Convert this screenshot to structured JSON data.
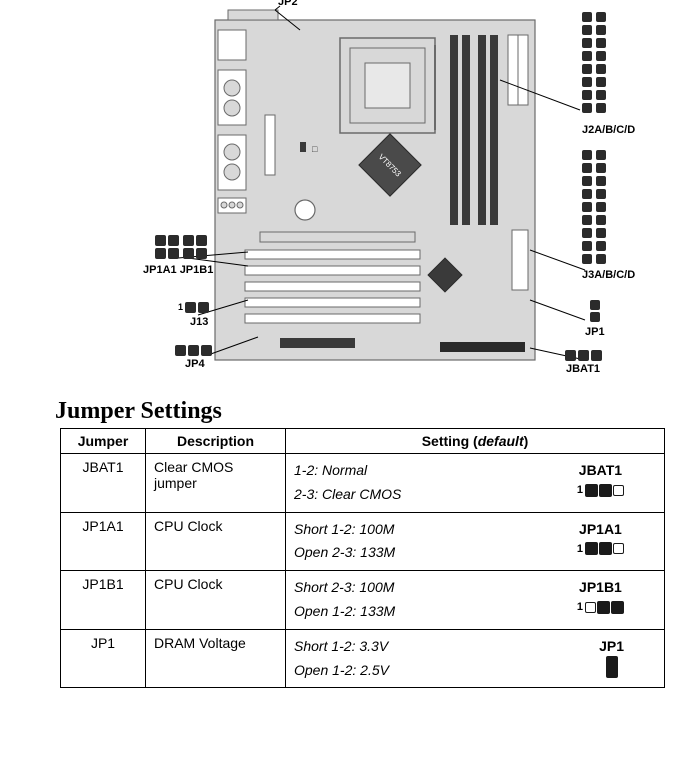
{
  "diagram": {
    "labels": {
      "jp2": "JP2",
      "j2": "J2A/B/C/D",
      "j3": "J3A/B/C/D",
      "jp1": "JP1",
      "jbat1": "JBAT1",
      "jp1a1_jp1b1": "JP1A1 JP1B1",
      "j13": "J13",
      "jp4": "JP4"
    },
    "chip_label": "VT8753",
    "colors": {
      "board_fill": "#d8d8d8",
      "board_stroke": "#6a6a6a",
      "slot_fill": "#ffffff",
      "dark": "#3a3a3a",
      "pin_fill": "#2b2b2b",
      "black": "#000000",
      "line": "#000000"
    }
  },
  "section_title": "Jumper Settings",
  "table": {
    "headers": {
      "jumper": "Jumper",
      "description": "Description",
      "setting": "Setting (",
      "setting_default": "default",
      "setting_close": ")"
    },
    "rows": [
      {
        "jumper": "JBAT1",
        "desc": "Clear CMOS jumper",
        "l1": "1-2: Normal",
        "l2": "2-3: Clear CMOS",
        "vis_label": "JBAT1",
        "vis_type": "h3",
        "vis_pattern": "ffo"
      },
      {
        "jumper": "JP1A1",
        "desc": "CPU Clock",
        "l1": "Short 1-2: 100M",
        "l2": "Open 2-3: 133M",
        "vis_label": "JP1A1",
        "vis_type": "h3",
        "vis_pattern": "ffo"
      },
      {
        "jumper": "JP1B1",
        "desc": "CPU Clock",
        "l1": "Short 2-3: 100M",
        "l2": "Open 1-2: 133M",
        "vis_label": "JP1B1",
        "vis_type": "h3",
        "vis_pattern": "off"
      },
      {
        "jumper": "JP1",
        "desc": "DRAM Voltage",
        "l1": "Short 1-2: 3.3V",
        "l2": "Open 1-2: 2.5V",
        "vis_label": "JP1",
        "vis_type": "v",
        "vis_pattern": ""
      }
    ]
  }
}
